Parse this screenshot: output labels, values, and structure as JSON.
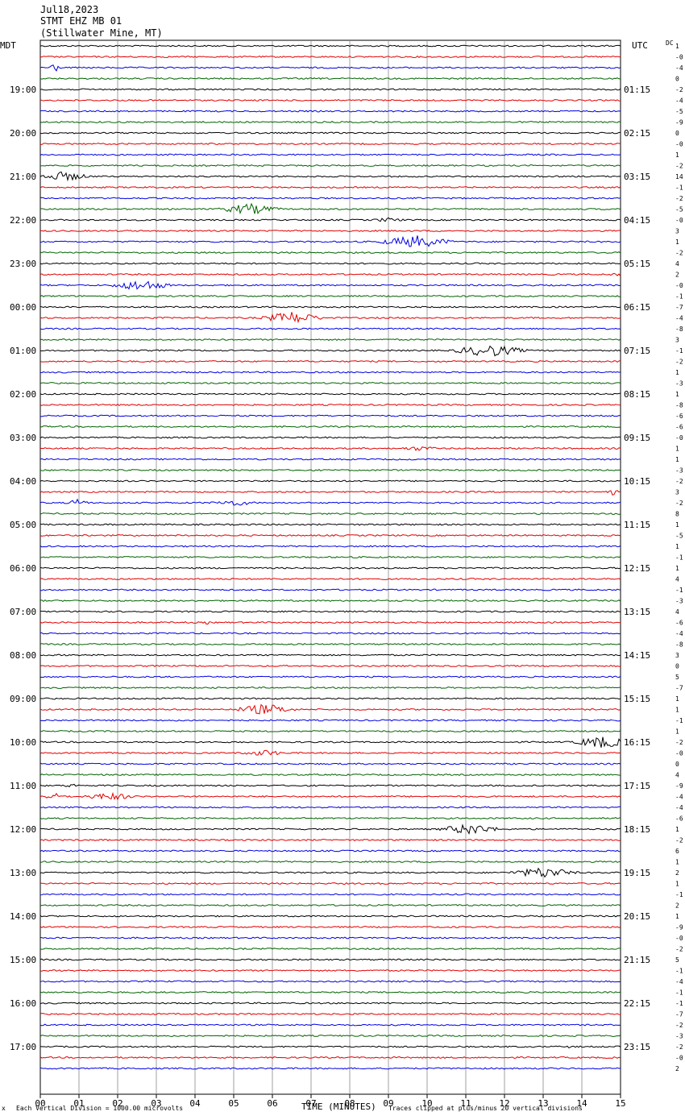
{
  "header": {
    "date": "Jul18,2023",
    "station": "STMT EHZ MB 01",
    "location": "(Stillwater Mine, MT)"
  },
  "left_zone": "MDT",
  "right_zone": "UTC",
  "dc_label": "DC",
  "footer": {
    "mark": "x",
    "scale": "Each Vertical Division = 1000.00 microvolts",
    "clip": "Traces clipped at plus/minus 20 vertical divisions"
  },
  "colors": {
    "trace_cycle": [
      "#000000",
      "#e00000",
      "#0000e0",
      "#006400"
    ],
    "grid": "#888888"
  },
  "chart_data": {
    "type": "line",
    "title": "",
    "xlabel": "TIME (MINUTES)",
    "xlim": [
      0,
      15
    ],
    "x_ticks": [
      "00",
      "01",
      "02",
      "03",
      "04",
      "05",
      "06",
      "07",
      "08",
      "09",
      "10",
      "11",
      "12",
      "13",
      "14",
      "15"
    ],
    "traces_per_hour": 4,
    "left_hour_labels": [
      "19:00",
      "20:00",
      "21:00",
      "22:00",
      "23:00",
      "00:00",
      "01:00",
      "02:00",
      "03:00",
      "04:00",
      "05:00",
      "06:00",
      "07:00",
      "08:00",
      "09:00",
      "10:00",
      "11:00",
      "12:00",
      "13:00",
      "14:00",
      "15:00",
      "16:00",
      "17:00"
    ],
    "right_hour_labels": [
      "01:15",
      "02:15",
      "03:15",
      "04:15",
      "05:15",
      "06:15",
      "07:15",
      "08:15",
      "09:15",
      "10:15",
      "11:15",
      "12:15",
      "13:15",
      "14:15",
      "15:15",
      "16:15",
      "17:15",
      "18:15",
      "19:15",
      "20:15",
      "21:15",
      "22:15",
      "23:15"
    ],
    "dc_offsets": [
      "1",
      "-0",
      "-4",
      "0",
      "-2",
      "-4",
      "-5",
      "-9",
      "0",
      "-0",
      "1",
      "-2",
      "14",
      "-1",
      "-2",
      "-5",
      "-0",
      "3",
      "1",
      "-2",
      "4",
      "2",
      "-0",
      "-1",
      "-7",
      "-4",
      "-8",
      "3",
      "-1",
      "-2",
      "1",
      "-3",
      "1",
      "-8",
      "-6",
      "-6",
      "-0",
      "1",
      "1",
      "-3",
      "-2",
      "3",
      "-2",
      "8",
      "1",
      "-5",
      "1",
      "-1",
      "1",
      "4",
      "-1",
      "-3",
      "4",
      "-6",
      "-4",
      "-8",
      "3",
      "0",
      "5",
      "-7",
      "1",
      "1",
      "-1",
      "1",
      "-2",
      "-0",
      "0",
      "4",
      "-9",
      "-4",
      "-4",
      "-6",
      "1",
      "-2",
      "6",
      "1",
      "2",
      "1",
      "-1",
      "2",
      "1",
      "-9",
      "-0",
      "-2",
      "5",
      "-1",
      "-4",
      "-1",
      "-1",
      "-7",
      "-2",
      "-3",
      "-2",
      "-0",
      "2"
    ],
    "events": [
      {
        "trace": 2,
        "minute": 0.35,
        "amp": 9,
        "dur": 0.15
      },
      {
        "trace": 12,
        "minute": 0.6,
        "amp": 6,
        "dur": 0.9
      },
      {
        "trace": 15,
        "minute": 5.4,
        "amp": 7,
        "dur": 1.0
      },
      {
        "trace": 16,
        "minute": 9.0,
        "amp": 3,
        "dur": 0.6
      },
      {
        "trace": 18,
        "minute": 9.7,
        "amp": 8,
        "dur": 1.2
      },
      {
        "trace": 22,
        "minute": 2.6,
        "amp": 7,
        "dur": 1.0
      },
      {
        "trace": 21,
        "minute": 15,
        "amp": 3,
        "dur": 0.5
      },
      {
        "trace": 25,
        "minute": 6.5,
        "amp": 8,
        "dur": 1.0
      },
      {
        "trace": 28,
        "minute": 11.6,
        "amp": 8,
        "dur": 1.2
      },
      {
        "trace": 37,
        "minute": 9.8,
        "amp": 3,
        "dur": 0.8
      },
      {
        "trace": 41,
        "minute": 14.8,
        "amp": 4,
        "dur": 0.4
      },
      {
        "trace": 42,
        "minute": 1.0,
        "amp": 7,
        "dur": 0.3
      },
      {
        "trace": 42,
        "minute": 5.0,
        "amp": 4,
        "dur": 0.8
      },
      {
        "trace": 53,
        "minute": 4.3,
        "amp": 3,
        "dur": 0.1
      },
      {
        "trace": 61,
        "minute": 5.8,
        "amp": 7,
        "dur": 1.0
      },
      {
        "trace": 64,
        "minute": 14.5,
        "amp": 8,
        "dur": 0.9
      },
      {
        "trace": 65,
        "minute": 5.8,
        "amp": 4,
        "dur": 0.8
      },
      {
        "trace": 68,
        "minute": 0.8,
        "amp": 3,
        "dur": 0.3
      },
      {
        "trace": 69,
        "minute": 0.4,
        "amp": 4,
        "dur": 0.5
      },
      {
        "trace": 69,
        "minute": 1.8,
        "amp": 5,
        "dur": 0.9
      },
      {
        "trace": 72,
        "minute": 11.1,
        "amp": 7,
        "dur": 1.0
      },
      {
        "trace": 76,
        "minute": 13.0,
        "amp": 7,
        "dur": 1.1
      },
      {
        "trace": 92,
        "minute": 13.7,
        "amp": 5,
        "dur": 0.05
      }
    ]
  }
}
